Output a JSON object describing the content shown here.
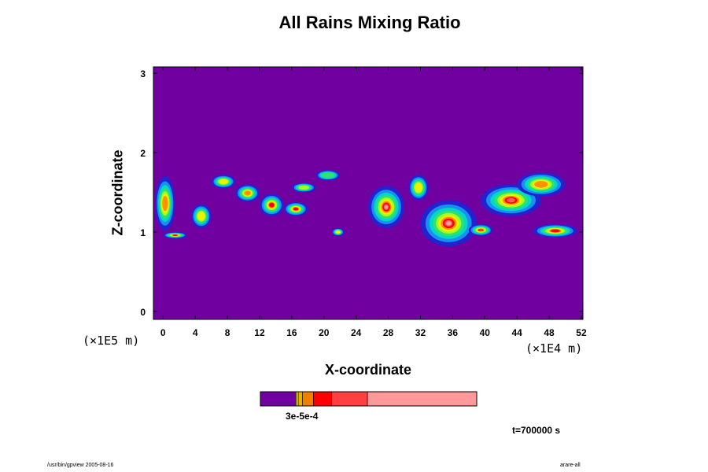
{
  "chart_data": {
    "type": "heatmap",
    "title": "All Rains Mixing Ratio",
    "xlabel": "X-coordinate",
    "ylabel": "Z-coordinate",
    "x_unit_label": "(×1E4 m)",
    "y_unit_label": "(×1E5 m)",
    "x_ticks": [
      0,
      4,
      8,
      12,
      16,
      20,
      24,
      28,
      32,
      36,
      40,
      44,
      48,
      52
    ],
    "y_ticks": [
      0,
      1,
      2,
      3
    ],
    "xlim": [
      -1.2,
      52.2
    ],
    "ylim": [
      -0.1,
      3.08
    ],
    "background_color": "#7000a0",
    "colorbar": {
      "colors": [
        "#7000a0",
        "#f0e000",
        "#f0b000",
        "#f08000",
        "#ff0000",
        "#ff4040",
        "#ff9898"
      ],
      "fractions": [
        0.165,
        0.01,
        0.02,
        0.05,
        0.085,
        0.165,
        0.505
      ],
      "label": "3e-5e-4"
    },
    "rain_bands": [
      {
        "x": [
          -1,
          1.5
        ],
        "z": [
          1.02,
          1.7
        ],
        "intensity": 0.45
      },
      {
        "x": [
          0,
          3
        ],
        "z": [
          0.92,
          1.0
        ],
        "intensity": 0.55
      },
      {
        "x": [
          3.5,
          6
        ],
        "z": [
          1.05,
          1.35
        ],
        "intensity": 0.4
      },
      {
        "x": [
          6,
          9
        ],
        "z": [
          1.55,
          1.72
        ],
        "intensity": 0.35
      },
      {
        "x": [
          9,
          12
        ],
        "z": [
          1.38,
          1.6
        ],
        "intensity": 0.5
      },
      {
        "x": [
          12,
          15
        ],
        "z": [
          1.2,
          1.48
        ],
        "intensity": 0.6
      },
      {
        "x": [
          15,
          18
        ],
        "z": [
          1.2,
          1.38
        ],
        "intensity": 0.6
      },
      {
        "x": [
          16,
          19
        ],
        "z": [
          1.5,
          1.62
        ],
        "intensity": 0.3
      },
      {
        "x": [
          19,
          22
        ],
        "z": [
          1.65,
          1.78
        ],
        "intensity": 0.2
      },
      {
        "x": [
          21,
          22.5
        ],
        "z": [
          0.95,
          1.05
        ],
        "intensity": 0.4
      },
      {
        "x": [
          25.5,
          30
        ],
        "z": [
          1.05,
          1.58
        ],
        "intensity": 0.85
      },
      {
        "x": [
          30.5,
          33
        ],
        "z": [
          1.4,
          1.72
        ],
        "intensity": 0.4
      },
      {
        "x": [
          32,
          39
        ],
        "z": [
          0.82,
          1.4
        ],
        "intensity": 1.0
      },
      {
        "x": [
          38,
          41
        ],
        "z": [
          0.95,
          1.1
        ],
        "intensity": 0.8
      },
      {
        "x": [
          39.5,
          47
        ],
        "z": [
          1.2,
          1.6
        ],
        "intensity": 0.7
      },
      {
        "x": [
          44,
          50
        ],
        "z": [
          1.45,
          1.75
        ],
        "intensity": 0.5
      },
      {
        "x": [
          46,
          51.5
        ],
        "z": [
          0.93,
          1.1
        ],
        "intensity": 0.55
      }
    ]
  },
  "time_label": "t=700000 s",
  "footer_left": "/usr/bin/gpview 2005-08-16",
  "footer_right": "arare-all"
}
